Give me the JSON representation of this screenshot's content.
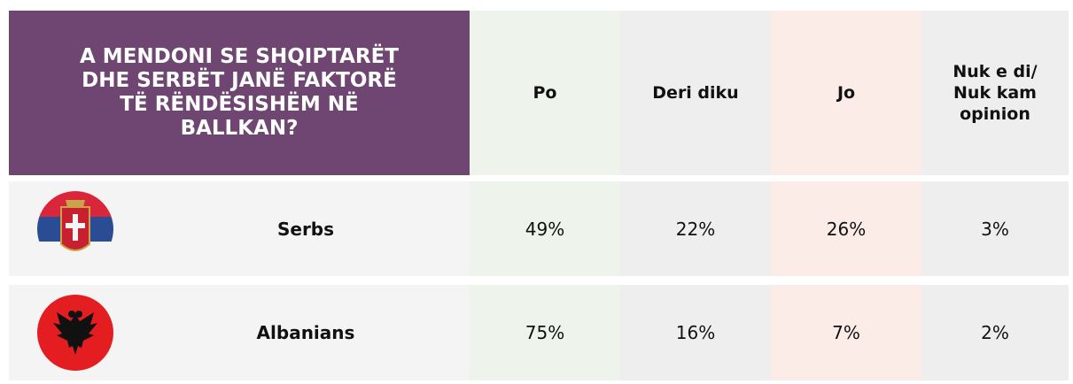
{
  "header": {
    "title": "A MENDONI SE SHQIPTARËT DHE SERBËT JANË FAKTORË TË RËNDËSISHËM NË BALLKAN?",
    "columns": [
      "Po",
      "Deri diku",
      "Jo",
      "Nuk e di/ Nuk kam opinion"
    ]
  },
  "table": {
    "rows": [
      {
        "name": "Serbs",
        "values": [
          "49%",
          "22%",
          "26%",
          "3%"
        ]
      },
      {
        "name": "Albanians",
        "values": [
          "75%",
          "16%",
          "7%",
          "2%"
        ]
      }
    ]
  }
}
